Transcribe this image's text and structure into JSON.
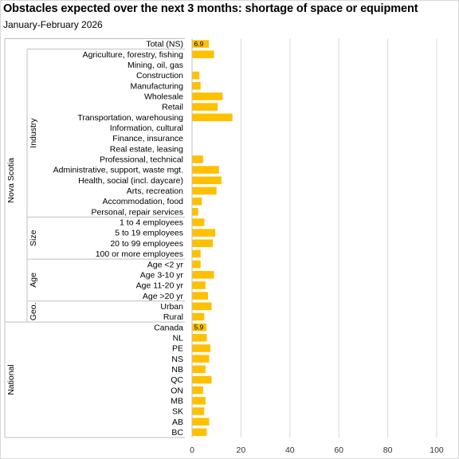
{
  "title": "Obstacles expected over the next 3 months: shortage of space or equipment",
  "subtitle": "January-February  2026",
  "colors": {
    "bar": "#FFC000",
    "grid": "#D9D9D9",
    "axis": "#BFBFBF"
  },
  "chart_data": {
    "type": "bar",
    "orientation": "horizontal",
    "xlim": [
      0,
      100
    ],
    "xticks": [
      0,
      20,
      40,
      60,
      80,
      100
    ],
    "grid": true,
    "legend": "none",
    "groups": [
      {
        "outer": "Nova Scotia",
        "inner": "",
        "categories": [
          "Total (NS)"
        ]
      },
      {
        "outer": "Nova Scotia",
        "inner": "Industry",
        "categories": [
          "Agriculture, forestry, fishing",
          "Mining, oil, gas",
          "Construction",
          "Manufacturing",
          "Wholesale",
          "Retail",
          "Transportation, warehousing",
          "Information, cultural",
          "Finance, insurance",
          "Real estate, leasing",
          "Professional, technical",
          "Administrative, support, waste mgt.",
          "Health, social (incl. daycare)",
          "Arts, recreation",
          "Accommodation, food",
          "Personal, repair services"
        ]
      },
      {
        "outer": "Nova Scotia",
        "inner": "Size",
        "categories": [
          "1 to 4 employees",
          "5 to 19 employees",
          "20 to 99 employees",
          "100 or more employees"
        ]
      },
      {
        "outer": "Nova Scotia",
        "inner": "Age",
        "categories": [
          "Age <2 yr",
          "Age 3-10 yr",
          "Age 11-20 yr",
          "Age >20 yr"
        ]
      },
      {
        "outer": "Nova Scotia",
        "inner": "Geo.",
        "categories": [
          "Urban",
          "Rural"
        ]
      },
      {
        "outer": "National",
        "inner": "",
        "categories": [
          "Canada",
          "NL",
          "PE",
          "NS",
          "NB",
          "QC",
          "ON",
          "MB",
          "SK",
          "AB",
          "BC"
        ]
      }
    ],
    "values": [
      6.9,
      9.0,
      0,
      3.0,
      3.5,
      12.5,
      10.5,
      16.5,
      0,
      0,
      0,
      4.5,
      11.0,
      12.0,
      10.0,
      4.0,
      2.5,
      5.0,
      9.5,
      8.5,
      3.5,
      3.5,
      9.0,
      5.5,
      6.5,
      8.0,
      5.0,
      5.9,
      6.0,
      7.5,
      7.0,
      5.5,
      8.0,
      4.5,
      5.5,
      5.0,
      7.0,
      6.0
    ],
    "data_labels": [
      {
        "index": 0,
        "text": "6.9"
      },
      {
        "index": 27,
        "text": "5.9"
      }
    ]
  }
}
